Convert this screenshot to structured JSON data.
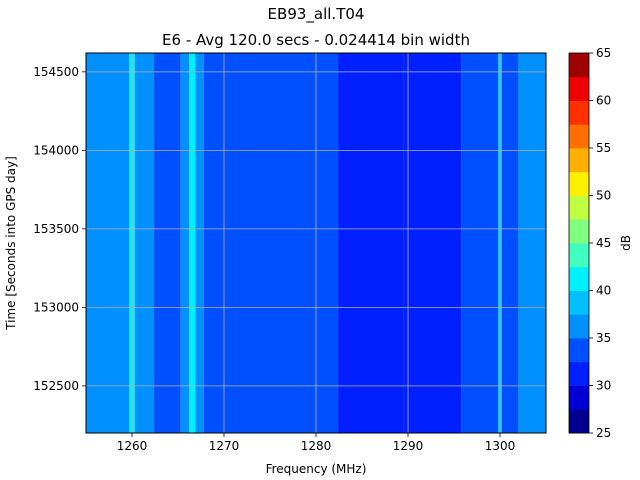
{
  "chart_data": {
    "type": "heatmap",
    "title": "EB93_all.T04",
    "subtitle": "E6 - Avg 120.0 secs - 0.024414 bin width",
    "xlabel": "Frequency (MHz)",
    "ylabel": "Time [Seconds into GPS day]",
    "xlim": [
      1255,
      1305
    ],
    "ylim": [
      152200,
      154620
    ],
    "x_ticks": [
      1260,
      1270,
      1280,
      1290,
      1300
    ],
    "y_ticks": [
      152500,
      153000,
      153500,
      154000,
      154500
    ],
    "grid": true,
    "colorbar": {
      "label": "dB",
      "range": [
        25,
        65
      ],
      "ticks": [
        25,
        30,
        35,
        40,
        45,
        50,
        55,
        60,
        65
      ],
      "levels": [
        25,
        27.5,
        30,
        32.5,
        35,
        37.5,
        40,
        42.5,
        45,
        47.5,
        50,
        52.5,
        55,
        57.5,
        60,
        62.5,
        65
      ],
      "colors": [
        "#00008f",
        "#0000d6",
        "#0020ff",
        "#0050ff",
        "#0090ff",
        "#00c0ff",
        "#00f0ff",
        "#40ffbf",
        "#80ff80",
        "#bfff40",
        "#ffef00",
        "#ffb000",
        "#ff7000",
        "#ff3000",
        "#ee0000",
        "#a00000"
      ]
    },
    "bands": [
      {
        "x0": 1255.0,
        "x1": 1259.7,
        "db": 36
      },
      {
        "x0": 1259.7,
        "x1": 1260.3,
        "db": 41
      },
      {
        "x0": 1260.3,
        "x1": 1262.4,
        "db": 36
      },
      {
        "x0": 1262.4,
        "x1": 1265.3,
        "db": 33
      },
      {
        "x0": 1265.3,
        "x1": 1266.2,
        "db": 36
      },
      {
        "x0": 1266.2,
        "x1": 1266.9,
        "db": 41
      },
      {
        "x0": 1266.9,
        "x1": 1267.8,
        "db": 36
      },
      {
        "x0": 1267.8,
        "x1": 1282.4,
        "db": 33
      },
      {
        "x0": 1282.4,
        "x1": 1289.5,
        "db": 31
      },
      {
        "x0": 1289.5,
        "x1": 1295.8,
        "db": 31
      },
      {
        "x0": 1295.8,
        "x1": 1299.8,
        "db": 33
      },
      {
        "x0": 1299.8,
        "x1": 1300.2,
        "db": 38
      },
      {
        "x0": 1300.2,
        "x1": 1302.0,
        "db": 33
      },
      {
        "x0": 1302.0,
        "x1": 1305.0,
        "db": 36
      }
    ]
  }
}
